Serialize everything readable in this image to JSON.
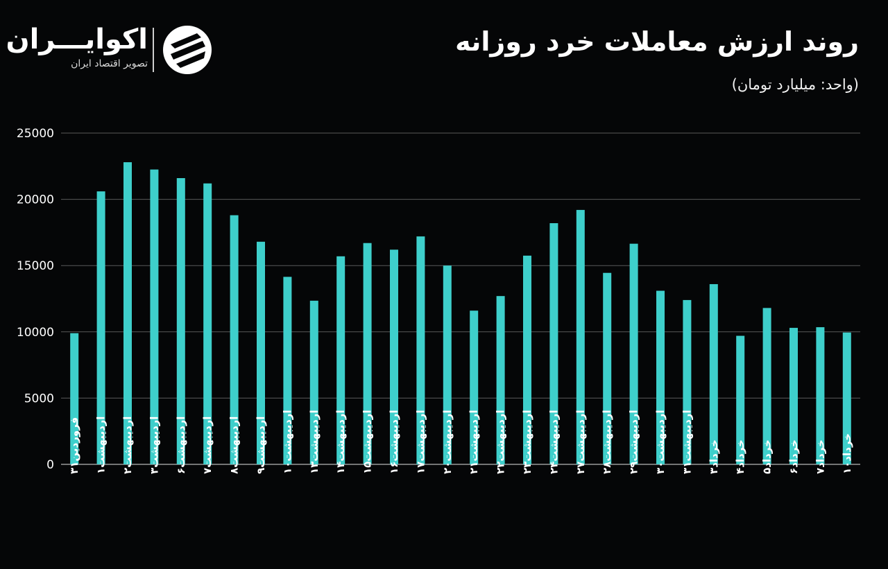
{
  "header": {
    "title": "روند ارزش معاملات خرد روزانه",
    "unit": "(واحد: میلیارد تومان)"
  },
  "brand": {
    "name": "اکوایـــران",
    "tagline": "تصویر اقتصاد ایران",
    "logo_icon": "ekoiran-logo-icon"
  },
  "colors": {
    "background": "#050607",
    "bar": "#3ECFCB",
    "grid": "#5a5a5a",
    "text": "#ffffff"
  },
  "chart_data": {
    "type": "bar",
    "title": "روند ارزش معاملات خرد روزانه",
    "ylabel": "(واحد: میلیارد تومان)",
    "ylim": [
      0,
      25000
    ],
    "yticks": [
      0,
      5000,
      10000,
      15000,
      20000,
      25000
    ],
    "ytick_labels": [
      "0",
      "5000",
      "10000",
      "15000",
      "20000",
      "25000"
    ],
    "grid": true,
    "categories": [
      "فروردین۳۱",
      "اردیبهشت۱",
      "اردیبهشت۲",
      "اردیبهشت۳",
      "اردیبهشت۶",
      "اردیبهشت۷",
      "اردیبهشت۸",
      "اردیبهشت۹",
      "اردیبهشت۱۰",
      "اردیبهشت۱۳",
      "اردیبهشت۱۴",
      "اردیبهشت۱۵",
      "اردیبهشت۱۶",
      "اردیبهشت۱۷",
      "اردیبهشت۲۰",
      "اردیبهشت۲۱",
      "اردیبهشت۲۲",
      "اردیبهشت۲۳",
      "اردیبهشت۲۴",
      "اردیبهشت۲۷",
      "اردیبهشت۲۸",
      "اردیبهشت۲۹",
      "اردیبهشت۳۰",
      "اردیبهشت۳۱",
      "خرداد۳",
      "خرداد۴",
      "خرداد۵",
      "خرداد۶",
      "خرداد۷",
      "خرداد۱۰"
    ],
    "values": [
      9900,
      20600,
      22800,
      22250,
      21600,
      21200,
      18800,
      16800,
      14150,
      12350,
      15700,
      16700,
      16200,
      17200,
      15000,
      11600,
      12700,
      15750,
      18200,
      19200,
      14450,
      16650,
      13100,
      12400,
      13600,
      9700,
      11800,
      10300,
      10350,
      9950
    ]
  }
}
